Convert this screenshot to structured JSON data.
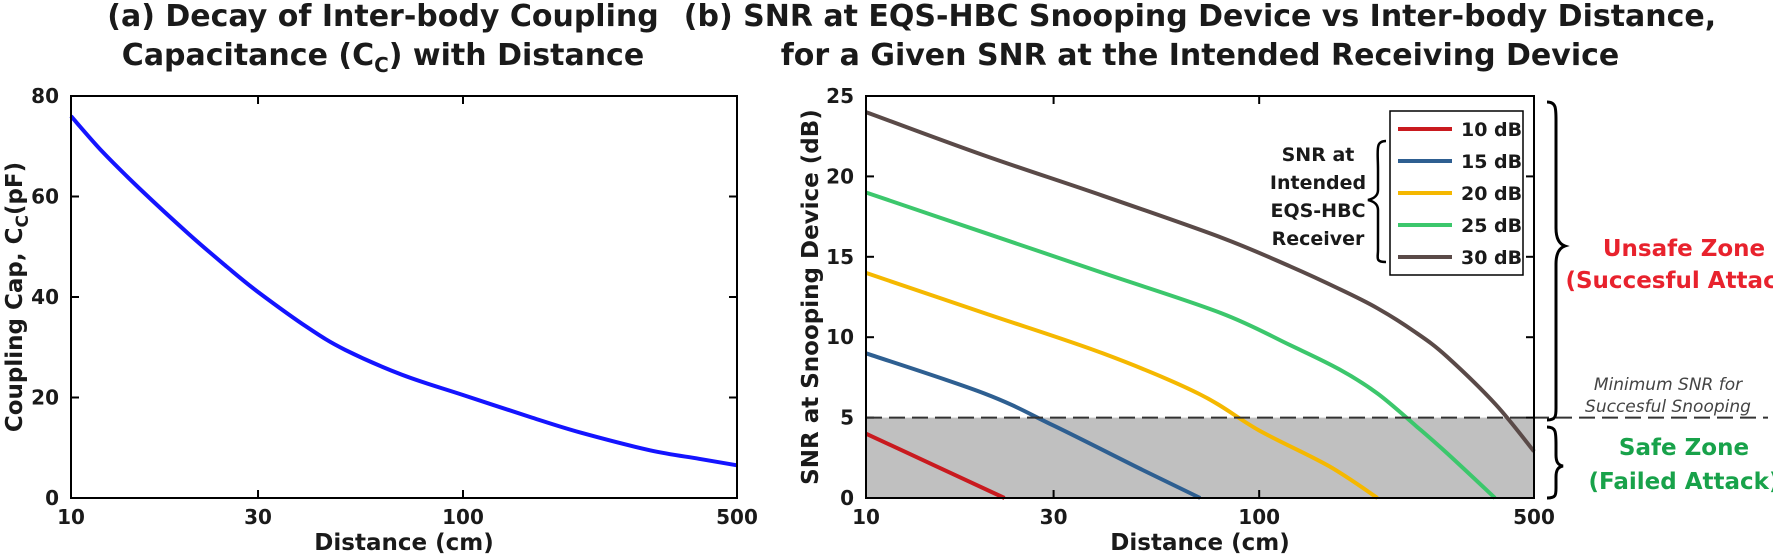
{
  "colors": {
    "panel_a_curve": "#1414ff",
    "series": [
      "#c91a1f",
      "#2e5f91",
      "#f5b800",
      "#3cc76c",
      "#5a4a48"
    ],
    "shaded": "#c0c0c0",
    "unsafe": "#e8222d",
    "safe": "#18a24a"
  },
  "chart_data": [
    {
      "type": "line",
      "panel": "a",
      "title_line1": "(a) Decay of Inter-body Coupling",
      "title_line2_pre": "Capacitance (C",
      "title_line2_sub": "C",
      "title_line2_post": ") with Distance",
      "xlabel": "Distance (cm)",
      "ylabel_pre": "Coupling Cap, C",
      "ylabel_sub": "C",
      "ylabel_post": "(pF)",
      "xscale": "log",
      "xlim": [
        10,
        500
      ],
      "ylim": [
        0,
        80
      ],
      "xticks": [
        10,
        30,
        100,
        500
      ],
      "yticks": [
        0,
        20,
        40,
        60,
        80
      ],
      "series": [
        {
          "name": "Cc",
          "x": [
            10,
            12,
            15,
            20,
            25,
            30,
            40,
            50,
            70,
            100,
            150,
            200,
            300,
            400,
            500
          ],
          "y": [
            76,
            69,
            61.5,
            52.5,
            46,
            41,
            34,
            29.5,
            24.5,
            20.5,
            16,
            13,
            9.5,
            7.8,
            6.5
          ]
        }
      ]
    },
    {
      "type": "line",
      "panel": "b",
      "title_line1": "(b) SNR at EQS-HBC Snooping Device vs Inter-body Distance,",
      "title_line2": "for a Given SNR at the Intended Receiving Device",
      "xlabel": "Distance (cm)",
      "ylabel": "SNR at Snooping Device (dB)",
      "xscale": "log",
      "xlim": [
        10,
        500
      ],
      "ylim": [
        0,
        25
      ],
      "xticks": [
        10,
        30,
        100,
        500
      ],
      "yticks": [
        0,
        5,
        10,
        15,
        20,
        25
      ],
      "threshold": 5,
      "legend_title": [
        "SNR at",
        "Intended",
        "EQS-HBC",
        "Receiver"
      ],
      "legend_position": "top-right",
      "annotations": {
        "min_snr": [
          "Minimum SNR for",
          "Succesful Snooping"
        ],
        "unsafe": [
          "Unsafe Zone",
          "(Succesful Attack)"
        ],
        "safe": [
          "Safe Zone",
          "(Failed Attack)"
        ]
      },
      "series": [
        {
          "name": "10 dB",
          "x": [
            10,
            15,
            22.5
          ],
          "y": [
            4,
            2,
            0
          ]
        },
        {
          "name": "15 dB",
          "x": [
            10,
            20,
            30,
            50,
            70.8
          ],
          "y": [
            9,
            6.5,
            4.5,
            1.8,
            0
          ]
        },
        {
          "name": "20 dB",
          "x": [
            10,
            20,
            40,
            70,
            100,
            150,
            200
          ],
          "y": [
            14,
            11.5,
            9,
            6.5,
            4.2,
            2,
            0
          ]
        },
        {
          "name": "25 dB",
          "x": [
            10,
            20,
            40,
            80,
            120,
            160,
            200,
            250,
            300,
            398
          ],
          "y": [
            19,
            16.5,
            14,
            11.5,
            9.5,
            8,
            6.5,
            4.5,
            2.8,
            0
          ]
        },
        {
          "name": "30 dB",
          "x": [
            10,
            20,
            40,
            80,
            120,
            160,
            200,
            250,
            300,
            400,
            500
          ],
          "y": [
            24,
            21.3,
            18.8,
            16.2,
            14.4,
            13,
            11.8,
            10.3,
            8.8,
            5.8,
            2.9
          ]
        }
      ]
    }
  ]
}
